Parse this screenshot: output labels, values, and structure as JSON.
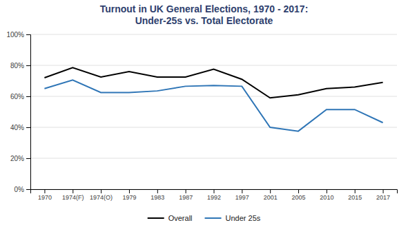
{
  "chart_data": {
    "type": "line",
    "title": "Turnout in UK General Elections, 1970 - 2017:\nUnder-25s vs. Total Electorate",
    "categories": [
      "1970",
      "1974(F)",
      "1974(O)",
      "1979",
      "1983",
      "1987",
      "1992",
      "1997",
      "2001",
      "2005",
      "2010",
      "2015",
      "2017"
    ],
    "series": [
      {
        "name": "Overall",
        "color": "#000000",
        "values": [
          0.72,
          0.785,
          0.725,
          0.76,
          0.725,
          0.725,
          0.775,
          0.71,
          0.59,
          0.61,
          0.65,
          0.66,
          0.69
        ]
      },
      {
        "name": "Under 25s",
        "color": "#2e75b6",
        "values": [
          0.65,
          0.705,
          0.625,
          0.625,
          0.635,
          0.665,
          0.67,
          0.665,
          0.4,
          0.375,
          0.515,
          0.515,
          0.43
        ]
      }
    ],
    "ylim": [
      0,
      1.0
    ],
    "yticks": [
      {
        "value": 0.0,
        "label": "0%"
      },
      {
        "value": 0.2,
        "label": "20%"
      },
      {
        "value": 0.4,
        "label": "40%"
      },
      {
        "value": 0.6,
        "label": "60%"
      },
      {
        "value": 0.8,
        "label": "80%"
      },
      {
        "value": 1.0,
        "label": "100%"
      }
    ],
    "grid": true,
    "legend": "bottom"
  }
}
